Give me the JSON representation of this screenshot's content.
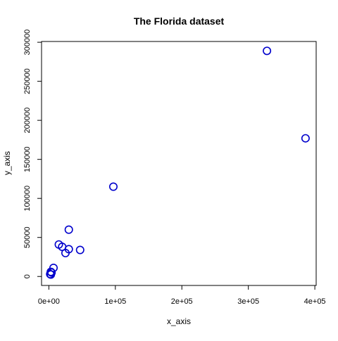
{
  "chart_data": {
    "type": "scatter",
    "title": "The Florida dataset",
    "xlabel": "x_axis",
    "ylabel": "y_axis",
    "xlim": [
      -11000,
      402000
    ],
    "ylim": [
      -11500,
      301000
    ],
    "x_ticks": [
      {
        "value": 0,
        "label": "0e+00"
      },
      {
        "value": 100000,
        "label": "1e+05"
      },
      {
        "value": 200000,
        "label": "2e+05"
      },
      {
        "value": 300000,
        "label": "3e+05"
      },
      {
        "value": 400000,
        "label": "4e+05"
      }
    ],
    "y_ticks": [
      {
        "value": 0,
        "label": "0"
      },
      {
        "value": 50000,
        "label": "50000"
      },
      {
        "value": 100000,
        "label": "100000"
      },
      {
        "value": 150000,
        "label": "150000"
      },
      {
        "value": 200000,
        "label": "200000"
      },
      {
        "value": 250000,
        "label": "250000"
      },
      {
        "value": 300000,
        "label": "300000"
      }
    ],
    "grid": false,
    "marker": "open-circle",
    "marker_color": "#0000CC",
    "points": [
      {
        "x": 328000,
        "y": 289000
      },
      {
        "x": 386000,
        "y": 177000
      },
      {
        "x": 97000,
        "y": 115000
      },
      {
        "x": 30000,
        "y": 60000
      },
      {
        "x": 47000,
        "y": 34000
      },
      {
        "x": 15000,
        "y": 41000
      },
      {
        "x": 20000,
        "y": 38000
      },
      {
        "x": 30000,
        "y": 35000
      },
      {
        "x": 25000,
        "y": 30000
      },
      {
        "x": 7000,
        "y": 11000
      },
      {
        "x": 3000,
        "y": 6000
      },
      {
        "x": 4000,
        "y": 5000
      },
      {
        "x": 2000,
        "y": 3000
      },
      {
        "x": 3000,
        "y": 2500
      }
    ]
  }
}
